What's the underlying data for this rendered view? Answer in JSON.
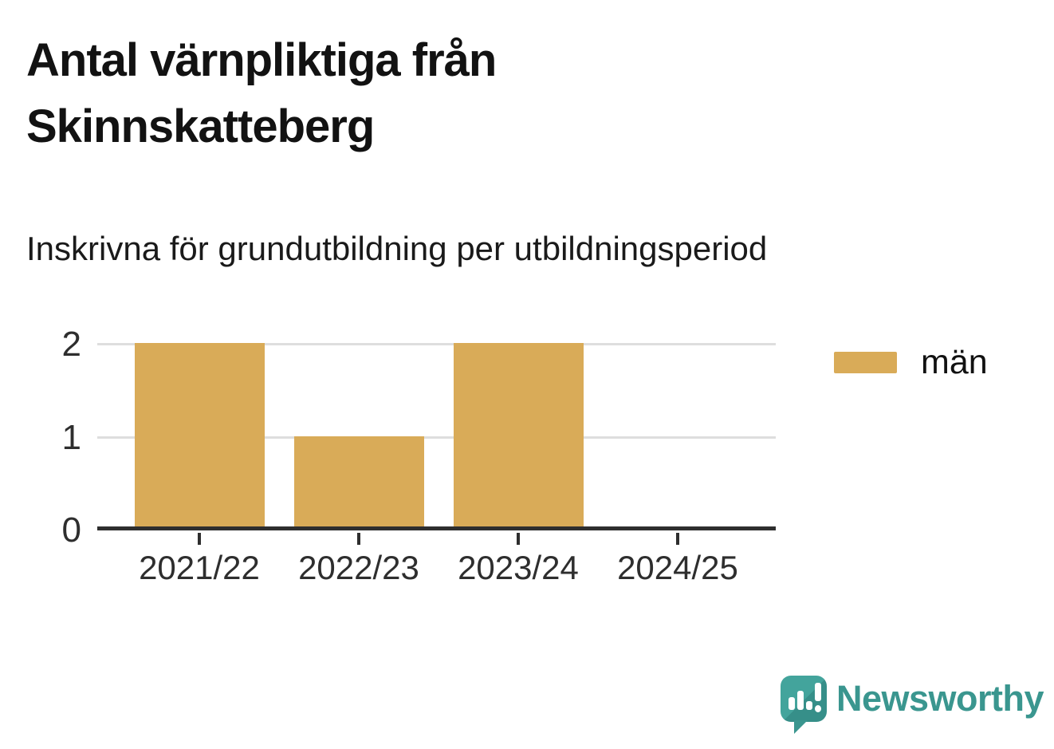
{
  "title": "Antal värnpliktiga från Skinnskatteberg",
  "subtitle": "Inskrivna för grundutbildning per utbildningsperiod",
  "chart_data": {
    "type": "bar",
    "categories": [
      "2021/22",
      "2022/23",
      "2023/24",
      "2024/25"
    ],
    "series": [
      {
        "name": "män",
        "values": [
          2,
          1,
          2,
          0
        ],
        "color": "#D9AB58"
      }
    ],
    "title": "Antal värnpliktiga från Skinnskatteberg",
    "subtitle": "Inskrivna för grundutbildning per utbildningsperiod",
    "xlabel": "",
    "ylabel": "",
    "ylim": [
      0,
      2
    ],
    "yticks": [
      0,
      1,
      2
    ],
    "grid": true,
    "legend_position": "right-of-plot"
  },
  "legend": {
    "label": "män",
    "swatch_color": "#D9AB58"
  },
  "branding": {
    "name": "Newsworthy",
    "icon": "newsworthy-speech-bubble-barchart-icon",
    "color": "#3A968F"
  },
  "colors": {
    "bar": "#D9AB58",
    "axis": "#2E2E2E",
    "grid": "#DEDEDE",
    "text": "#121212",
    "brand_teal": "#3A968F",
    "background": "#FFFFFF"
  }
}
